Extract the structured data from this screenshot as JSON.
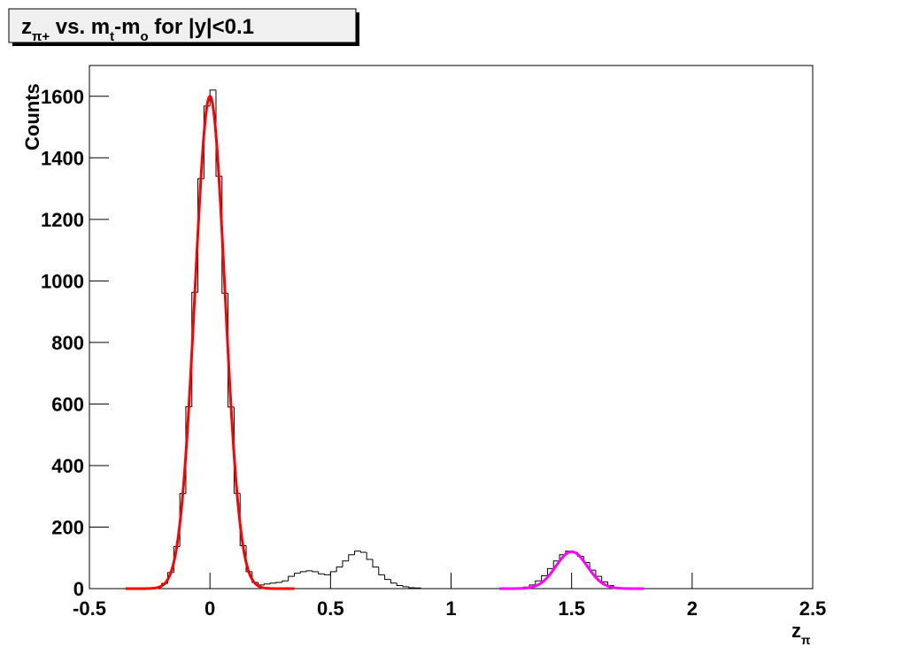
{
  "chart_data": {
    "type": "histogram",
    "title": [
      {
        "text": "z"
      },
      {
        "text": "π+",
        "sub": true
      },
      {
        "text": " vs. m"
      },
      {
        "text": "t",
        "sub": true
      },
      {
        "text": "-m"
      },
      {
        "text": "o",
        "sub": true
      },
      {
        "text": " for |y|<0.1"
      }
    ],
    "xlabel": [
      {
        "text": "z"
      },
      {
        "text": "π",
        "sub": true
      }
    ],
    "ylabel": "Counts",
    "bins": [
      -0.3,
      -0.275,
      -0.25,
      -0.225,
      -0.2,
      -0.175,
      -0.15,
      -0.125,
      -0.1,
      -0.075,
      -0.05,
      -0.025,
      0,
      0.025,
      0.05,
      0.075,
      0.1,
      0.125,
      0.15,
      0.175,
      0.2,
      0.225,
      0.25,
      0.275,
      0.3,
      0.325,
      0.35,
      0.375,
      0.4,
      0.425,
      0.45,
      0.475,
      0.5,
      0.525,
      0.55,
      0.575,
      0.6,
      0.625,
      0.65,
      0.675,
      0.7,
      0.725,
      0.75,
      0.775,
      0.8,
      0.825,
      0.85,
      0.875,
      0.9,
      0.925,
      0.95,
      0.975,
      1,
      1.025,
      1.05,
      1.075,
      1.1,
      1.125,
      1.15,
      1.175,
      1.2,
      1.225,
      1.25,
      1.275,
      1.3,
      1.325,
      1.35,
      1.375,
      1.4,
      1.425,
      1.45,
      1.475,
      1.5,
      1.525,
      1.55,
      1.575,
      1.6,
      1.625,
      1.65,
      1.675,
      1.7,
      1.725,
      1.75,
      1.775,
      1.8
    ],
    "values": [
      0,
      0,
      1,
      5,
      17,
      52,
      137,
      309,
      591,
      963,
      1332,
      1568,
      1620,
      1340,
      960,
      590,
      310,
      140,
      55,
      20,
      12,
      15,
      18,
      20,
      25,
      40,
      50,
      55,
      58,
      55,
      48,
      45,
      55,
      70,
      90,
      110,
      122,
      118,
      95,
      70,
      45,
      30,
      18,
      10,
      6,
      3,
      2,
      0,
      0,
      0,
      0,
      0,
      0,
      0,
      0,
      0,
      0,
      0,
      0,
      0,
      0,
      0,
      0,
      0,
      5,
      12,
      25,
      42,
      65,
      90,
      110,
      122,
      118,
      105,
      85,
      60,
      40,
      22,
      10,
      4,
      1,
      0,
      0,
      0
    ],
    "color": "#000000",
    "fits": [
      {
        "color": "#ff0000",
        "constant": 1600,
        "mean": 0,
        "sigma": 0.062,
        "range": [
          -0.35,
          0.35
        ]
      },
      {
        "color": "#ff00ff",
        "constant": 120,
        "mean": 1.5,
        "sigma": 0.065,
        "range": [
          1.2,
          1.8
        ]
      }
    ],
    "xlim": [
      -0.5,
      2.5
    ],
    "ylim": [
      0,
      1700
    ],
    "xticks": [
      -0.5,
      0,
      0.5,
      1,
      1.5,
      2,
      2.5
    ],
    "yticks": [
      0,
      200,
      400,
      600,
      800,
      1000,
      1200,
      1400,
      1600
    ]
  }
}
